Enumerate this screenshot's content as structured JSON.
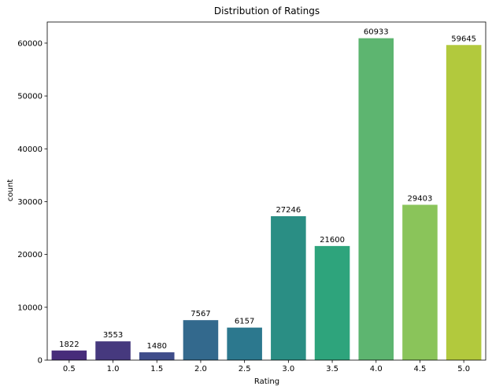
{
  "chart_data": {
    "type": "bar",
    "title": "Distribution of Ratings",
    "xlabel": "Rating",
    "ylabel": "count",
    "categories": [
      "0.5",
      "1.0",
      "1.5",
      "2.0",
      "2.5",
      "3.0",
      "3.5",
      "4.0",
      "4.5",
      "5.0"
    ],
    "values": [
      1822,
      3553,
      1480,
      7567,
      6157,
      27246,
      21600,
      60933,
      29403,
      59645
    ],
    "data_labels": [
      "1822",
      "3553",
      "1480",
      "7567",
      "6157",
      "27246",
      "21600",
      "60933",
      "29403",
      "59645"
    ],
    "colors": [
      "#472c7a",
      "#46397e",
      "#3f4d8a",
      "#33698d",
      "#2c788e",
      "#2a8e84",
      "#2ea47c",
      "#5db570",
      "#8ac45a",
      "#b2c93d"
    ],
    "yticks": [
      0,
      10000,
      20000,
      30000,
      40000,
      50000,
      60000
    ],
    "ytick_labels": [
      "0",
      "10000",
      "20000",
      "30000",
      "40000",
      "50000",
      "60000"
    ],
    "ylim": [
      0,
      64000
    ],
    "grid": false,
    "legend": "none"
  }
}
